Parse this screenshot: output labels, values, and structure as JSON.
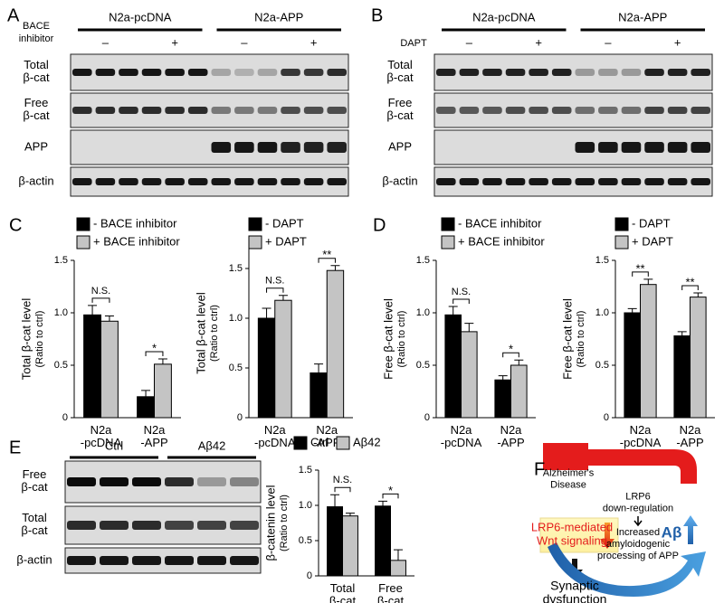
{
  "panel_A": {
    "letter": "A",
    "groups": [
      "N2a-pcDNA",
      "N2a-APP"
    ],
    "treatment": "BACE\ninhibitor",
    "signs": [
      "–",
      "+",
      "–",
      "+"
    ],
    "rows": [
      "Total\nβ-cat",
      "Free\nβ-cat",
      "APP",
      "β-actin"
    ]
  },
  "panel_B": {
    "letter": "B",
    "groups": [
      "N2a-pcDNA",
      "N2a-APP"
    ],
    "treatment": "DAPT",
    "signs": [
      "–",
      "+",
      "–",
      "+"
    ],
    "rows": [
      "Total\nβ-cat",
      "Free\nβ-cat",
      "APP",
      "β-actin"
    ]
  },
  "panel_C": {
    "letter": "C"
  },
  "panel_D": {
    "letter": "D"
  },
  "panel_E": {
    "letter": "E",
    "groups": [
      "Ctrl",
      "Aβ42"
    ],
    "rows": [
      "Free\nβ-cat",
      "Total\nβ-cat",
      "β-actin"
    ]
  },
  "panel_F": {
    "letter": "F",
    "disease": "Alzheimer's\nDisease",
    "pathway": "LRP6-mediated\nWnt signaling",
    "downreg": "LRP6\ndown-regulation",
    "processing": "Increased\namyloidogenic\nprocessing of APP",
    "outcome": "Synaptic\ndysfunction",
    "abeta": "Aβ"
  },
  "chart_data": [
    {
      "type": "bar",
      "y_label": "Total β-cat level",
      "y_label_note": "(Ratio to ctrl)",
      "categories": [
        "N2a\n-pcDNA",
        "N2a\n-APP"
      ],
      "series": [
        {
          "name": "- BACE inhibitor",
          "color": "#000000",
          "values": [
            0.98,
            0.2
          ],
          "errors": [
            0.09,
            0.06
          ]
        },
        {
          "name": "+ BACE inhibitor",
          "color": "#c4c4c4",
          "values": [
            0.92,
            0.51
          ],
          "errors": [
            0.05,
            0.05
          ]
        }
      ],
      "significance": [
        "N.S.",
        "*"
      ],
      "ylim": [
        0,
        1.5
      ],
      "yticks": [
        0,
        0.5,
        {
          "value": 1,
          "label": "1.0"
        },
        1.5
      ]
    },
    {
      "type": "bar",
      "y_label": "Total β-cat level",
      "y_label_note": "(Ratio to ctrl)",
      "categories": [
        "N2a\n-pcDNA",
        "N2a\n-APP"
      ],
      "series": [
        {
          "name": "- DAPT",
          "color": "#000000",
          "values": [
            1.0,
            0.45
          ],
          "errors": [
            0.1,
            0.09
          ]
        },
        {
          "name": "+ DAPT",
          "color": "#c4c4c4",
          "values": [
            1.18,
            1.48
          ],
          "errors": [
            0.05,
            0.05
          ]
        }
      ],
      "significance": [
        "N.S.",
        "**"
      ],
      "ylim": [
        0,
        1.7
      ],
      "yticks": [
        0,
        0.5,
        {
          "value": 1,
          "label": "1.0"
        },
        1.5
      ]
    },
    {
      "type": "bar",
      "y_label": "Free β-cat level",
      "y_label_note": "(Ratio to ctrl)",
      "categories": [
        "N2a\n-pcDNA",
        "N2a\n-APP"
      ],
      "series": [
        {
          "name": "- BACE inhibitor",
          "color": "#000000",
          "values": [
            0.98,
            0.36
          ],
          "errors": [
            0.08,
            0.04
          ]
        },
        {
          "name": "+ BACE inhibitor",
          "color": "#c4c4c4",
          "values": [
            0.82,
            0.5
          ],
          "errors": [
            0.08,
            0.05
          ]
        }
      ],
      "significance": [
        "N.S.",
        "*"
      ],
      "ylim": [
        0,
        1.5
      ],
      "yticks": [
        0,
        0.5,
        {
          "value": 1,
          "label": "1.0"
        },
        1.5
      ]
    },
    {
      "type": "bar",
      "y_label": "Free β-cat level",
      "y_label_note": "(Ratio to ctrl)",
      "categories": [
        "N2a\n-pcDNA",
        "N2a\n-APP"
      ],
      "series": [
        {
          "name": "- DAPT",
          "color": "#000000",
          "values": [
            1.0,
            0.78
          ],
          "errors": [
            0.04,
            0.04
          ]
        },
        {
          "name": "+ DAPT",
          "color": "#c4c4c4",
          "values": [
            1.27,
            1.15
          ],
          "errors": [
            0.05,
            0.04
          ]
        }
      ],
      "significance": [
        "**",
        "**"
      ],
      "ylim": [
        0,
        1.5
      ],
      "yticks": [
        0,
        0.5,
        {
          "value": 1,
          "label": "1.0"
        },
        1.5
      ]
    },
    {
      "type": "bar",
      "y_label": "β-catenin level",
      "y_label_note": "(Ratio to ctrl)",
      "categories": [
        "Total\nβ-cat",
        "Free\nβ-cat"
      ],
      "series": [
        {
          "name": "Ctrl",
          "color": "#000000",
          "values": [
            0.98,
            0.99
          ],
          "errors": [
            0.17,
            0.07
          ]
        },
        {
          "name": "Aβ42",
          "color": "#c4c4c4",
          "values": [
            0.85,
            0.22
          ],
          "errors": [
            0.04,
            0.15
          ]
        }
      ],
      "significance": [
        "N.S.",
        "*"
      ],
      "ylim": [
        0,
        1.5
      ],
      "yticks": [
        0,
        0.5,
        {
          "value": 1,
          "label": "1.0"
        },
        1.5
      ]
    }
  ]
}
